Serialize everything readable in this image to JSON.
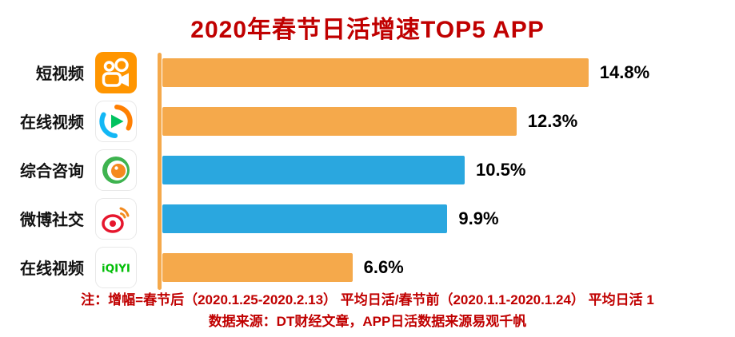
{
  "title": "2020年春节日活增速TOP5 APP",
  "chart_data": {
    "type": "bar",
    "orientation": "horizontal",
    "title": "2020年春节日活增速TOP5 APP",
    "categories": [
      "短视频",
      "在线视频",
      "综合咨询",
      "微博社交",
      "在线视频"
    ],
    "values": [
      14.8,
      12.3,
      10.5,
      9.9,
      6.6
    ],
    "value_labels": [
      "14.8%",
      "12.3%",
      "10.5%",
      "9.9%",
      "6.6%"
    ],
    "bar_colors": [
      "#f5a94b",
      "#f5a94b",
      "#2aa7df",
      "#2aa7df",
      "#f5a94b"
    ],
    "icons": [
      "kuaishou-app-icon",
      "tencent-video-app-icon",
      "tencent-news-app-icon",
      "weibo-app-icon",
      "iqiyi-app-icon"
    ],
    "xlim": [
      0,
      16
    ],
    "legend": "none",
    "grid": false
  },
  "icons": {
    "iqiyi_text": "iQIYI"
  },
  "footer": {
    "line1": "注：增幅=春节后（2020.1.25-2020.2.13）  平均日活/春节前（2020.1.1-2020.1.24）  平均日活 1",
    "line2": "数据来源：DT财经文章，APP日活数据来源易观千帆"
  },
  "colors": {
    "title_text": "#c00000",
    "footer_text": "#c00000",
    "axis_line": "#f5a94b",
    "orange_bar": "#f5a94b",
    "blue_bar": "#2aa7df"
  }
}
